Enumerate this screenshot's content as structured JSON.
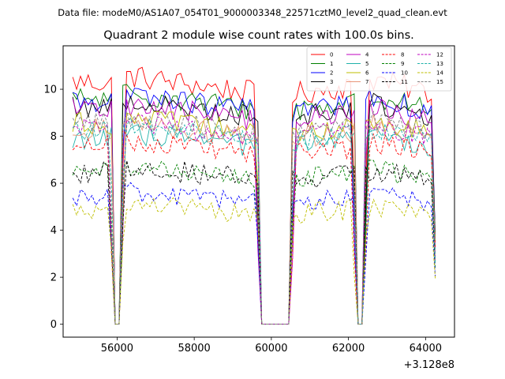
{
  "suptitle": "Data file: modeM0/AS1A07_054T01_9000003348_22571cztM0_level2_quad_clean.evt",
  "chart_data": {
    "type": "line",
    "title": "Quadrant 2 module wise count rates with 100.0s bins.",
    "xlabel": "",
    "ylabel": "",
    "x_offset_label": "+3.128e8",
    "xlim": [
      54600,
      64750
    ],
    "ylim": [
      -0.55,
      11.85
    ],
    "xticks": [
      56000,
      58000,
      60000,
      62000,
      64000
    ],
    "xtick_labels": [
      "56000",
      "58000",
      "60000",
      "62000",
      "64000"
    ],
    "yticks": [
      0,
      2,
      4,
      6,
      8,
      10
    ],
    "ytick_labels": [
      "0",
      "2",
      "4",
      "6",
      "8",
      "10"
    ],
    "grid": false,
    "legend_position": "top-right",
    "legend_columns": 4,
    "bin_width": 100,
    "x_start": 54850,
    "x_end": 64250,
    "series": [
      {
        "name": "0",
        "color": "#ff0000",
        "dash": "solid",
        "level": 10.0,
        "jitter": 0.32
      },
      {
        "name": "1",
        "color": "#008000",
        "dash": "solid",
        "level": 9.3,
        "jitter": 0.3
      },
      {
        "name": "2",
        "color": "#0000ff",
        "dash": "solid",
        "level": 9.25,
        "jitter": 0.3
      },
      {
        "name": "3",
        "color": "#000000",
        "dash": "solid",
        "level": 9.0,
        "jitter": 0.3
      },
      {
        "name": "4",
        "color": "#bf00bf",
        "dash": "solid",
        "level": 8.85,
        "jitter": 0.3
      },
      {
        "name": "5",
        "color": "#20b2aa",
        "dash": "solid",
        "level": 7.7,
        "jitter": 0.3
      },
      {
        "name": "6",
        "color": "#bfbf00",
        "dash": "solid",
        "level": 8.3,
        "jitter": 0.3
      },
      {
        "name": "7",
        "color": "#e9967a",
        "dash": "solid",
        "level": 8.1,
        "jitter": 0.3
      },
      {
        "name": "8",
        "color": "#ff0000",
        "dash": "dashed",
        "level": 7.4,
        "jitter": 0.28
      },
      {
        "name": "9",
        "color": "#008000",
        "dash": "dashed",
        "level": 6.3,
        "jitter": 0.28
      },
      {
        "name": "10",
        "color": "#0000ff",
        "dash": "dashed",
        "level": 5.3,
        "jitter": 0.28
      },
      {
        "name": "11",
        "color": "#000000",
        "dash": "dashed",
        "level": 6.3,
        "jitter": 0.3
      },
      {
        "name": "12",
        "color": "#bf00bf",
        "dash": "dashed",
        "level": 8.1,
        "jitter": 0.28
      },
      {
        "name": "13",
        "color": "#20b2aa",
        "dash": "dashed",
        "level": 8.0,
        "jitter": 0.28
      },
      {
        "name": "14",
        "color": "#bfbf00",
        "dash": "dashed",
        "level": 4.8,
        "jitter": 0.28
      },
      {
        "name": "15",
        "color": "#808080",
        "dash": "dashed",
        "level": 8.3,
        "jitter": 0.28
      }
    ],
    "gaps_zero_counts": [
      [
        55950,
        56050
      ],
      [
        59750,
        60450
      ],
      [
        62250,
        62350
      ]
    ]
  }
}
